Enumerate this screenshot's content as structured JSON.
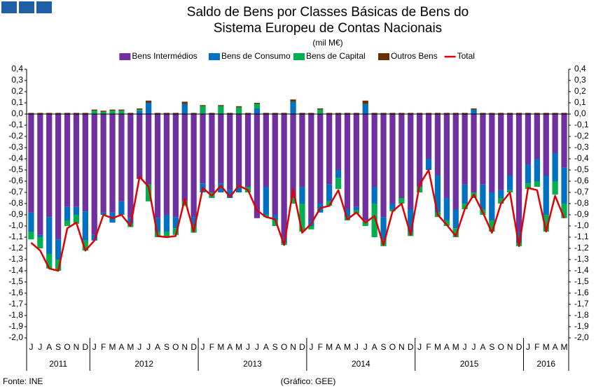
{
  "chart_data": {
    "type": "stacked_bar_line",
    "title": [
      "Saldo de Bens por Classes Básicas de Bens do",
      "Sistema Europeu de Contas Nacionais"
    ],
    "subtitle": "(mil M€)",
    "category_groups": [
      {
        "label": "2011",
        "categories": [
          "J",
          "J",
          "A",
          "S",
          "O",
          "N",
          "D"
        ]
      },
      {
        "label": "2012",
        "categories": [
          "J",
          "F",
          "M",
          "A",
          "M",
          "J",
          "J",
          "A",
          "S",
          "O",
          "N",
          "D"
        ]
      },
      {
        "label": "2013",
        "categories": [
          "J",
          "F",
          "M",
          "A",
          "M",
          "J",
          "J",
          "A",
          "S",
          "O",
          "N",
          "D"
        ]
      },
      {
        "label": "2014",
        "categories": [
          "J",
          "F",
          "M",
          "A",
          "M",
          "J",
          "J",
          "A",
          "S",
          "O",
          "N",
          "D"
        ]
      },
      {
        "label": "2015",
        "categories": [
          "J",
          "F",
          "M",
          "A",
          "M",
          "J",
          "J",
          "A",
          "S",
          "O",
          "N",
          "D"
        ]
      },
      {
        "label": "2016",
        "categories": [
          "J",
          "F",
          "M",
          "A",
          "M"
        ]
      }
    ],
    "series": [
      {
        "name": "Bens Intermédios",
        "color": "#7030a0",
        "values": [
          -0.88,
          -1.08,
          -0.92,
          -1.12,
          -0.83,
          -0.83,
          -0.87,
          -1.08,
          -0.88,
          -0.88,
          -0.78,
          -0.93,
          -0.58,
          -0.63,
          -0.93,
          -0.9,
          -0.92,
          -0.78,
          -0.92,
          -0.62,
          -0.7,
          -0.62,
          -0.68,
          -0.65,
          -0.65,
          -0.93,
          -0.65,
          -0.9,
          -1.1,
          -0.75,
          -0.65,
          -0.95,
          -0.8,
          -0.63,
          -0.5,
          -0.85,
          -0.83,
          -0.95,
          -0.65,
          -0.92,
          -0.8,
          -0.75,
          -0.85,
          -0.65,
          -0.4,
          -0.55,
          -0.75,
          -0.85,
          -0.63,
          -0.7,
          -0.63,
          -0.7,
          -0.68,
          -0.55,
          -1.05,
          -0.45,
          -0.4,
          -0.55,
          -0.35,
          -0.48
        ]
      },
      {
        "name": "Bens de Consumo",
        "color": "#0070c0",
        "values": [
          -0.17,
          -0.02,
          -0.33,
          -0.18,
          -0.12,
          -0.07,
          -0.26,
          -0.05,
          -0.02,
          -0.09,
          -0.12,
          -0.05,
          0.03,
          0.1,
          -0.12,
          -0.15,
          -0.1,
          0.09,
          -0.08,
          -0.08,
          0,
          -0.08,
          -0.07,
          -0.05,
          0,
          0.05,
          -0.25,
          -0.05,
          -0.05,
          0.11,
          -0.15,
          -0.05,
          -0.08,
          -0.15,
          -0.07,
          -0.07,
          -0.03,
          0.09,
          -0.15,
          -0.21,
          -0.05,
          0,
          -0.2,
          0,
          -0.1,
          -0.33,
          -0.2,
          -0.17,
          -0.17,
          0.04,
          -0.22,
          -0.25,
          -0.07,
          -0.13,
          -0.1,
          -0.17,
          -0.2,
          -0.35,
          -0.25,
          -0.32
        ]
      },
      {
        "name": "Bens de Capital",
        "color": "#00b050",
        "values": [
          -0.07,
          -0.1,
          -0.13,
          -0.1,
          -0.05,
          -0.08,
          -0.09,
          0.03,
          0.02,
          0.03,
          0.03,
          -0.03,
          0.01,
          -0.15,
          -0.05,
          -0.05,
          -0.06,
          -0.04,
          -0.06,
          0.07,
          -0.05,
          0.07,
          0,
          0.06,
          -0.05,
          0.04,
          -0.02,
          -0.05,
          -0.02,
          -0.05,
          -0.25,
          -0.03,
          0.04,
          -0.04,
          -0.1,
          -0.03,
          -0.03,
          -0.05,
          -0.3,
          -0.05,
          -0.02,
          -0.05,
          -0.04,
          -0.05,
          0,
          -0.04,
          -0.05,
          -0.08,
          -0.05,
          -0.05,
          -0.05,
          -0.1,
          -0.05,
          -0.02,
          -0.03,
          -0.05,
          -0.05,
          -0.15,
          -0.12,
          -0.13
        ]
      },
      {
        "name": "Outros Bens",
        "color": "#663300",
        "values": [
          0.01,
          0.01,
          0.01,
          0.01,
          0.01,
          0.01,
          0.01,
          0.01,
          0.01,
          0.01,
          0.01,
          0.01,
          0.01,
          0.02,
          0.01,
          0.01,
          0.01,
          0.02,
          0.01,
          0.01,
          0.01,
          0.01,
          0.01,
          0.01,
          0.01,
          0.01,
          0.01,
          0.01,
          0.01,
          0.02,
          0.01,
          0.01,
          0.01,
          0.01,
          0.01,
          0.01,
          0.01,
          0.03,
          0.01,
          0.01,
          0.01,
          0.01,
          0.01,
          0.01,
          0.01,
          0.01,
          0.01,
          0.01,
          0.01,
          0.01,
          0.01,
          0.01,
          0.01,
          0.01,
          0.01,
          0.01,
          0.01,
          0.01,
          0.01,
          0.01
        ]
      },
      {
        "name": "Total",
        "color": "#e00000",
        "line": true,
        "values": [
          -1.15,
          -1.22,
          -1.38,
          -1.4,
          -1.02,
          -0.97,
          -1.22,
          -1.13,
          -0.9,
          -0.93,
          -0.9,
          -1.0,
          -0.56,
          -0.65,
          -1.09,
          -1.1,
          -1.09,
          -0.76,
          -1.05,
          -0.66,
          -0.73,
          -0.64,
          -0.74,
          -0.64,
          -0.68,
          -0.86,
          -0.92,
          -0.94,
          -1.17,
          -0.67,
          -1.06,
          -0.98,
          -0.84,
          -0.82,
          -0.68,
          -0.94,
          -0.88,
          -0.97,
          -0.91,
          -1.17,
          -0.87,
          -0.8,
          -1.08,
          -0.63,
          -0.5,
          -0.9,
          -0.99,
          -1.09,
          -0.85,
          -0.72,
          -0.88,
          -1.06,
          -0.8,
          -0.7,
          -1.18,
          -0.66,
          -0.68,
          -1.05,
          -0.73,
          -0.93
        ]
      }
    ],
    "ylim": [
      -2.0,
      0.4
    ],
    "yticks": [
      {
        "value": 0.4,
        "label": "0,4"
      },
      {
        "value": 0.3,
        "label": "0,3"
      },
      {
        "value": 0.2,
        "label": "0,2"
      },
      {
        "value": 0.1,
        "label": "0,1"
      },
      {
        "value": 0,
        "label": "0,0"
      },
      {
        "value": -0.1,
        "label": "-0,1"
      },
      {
        "value": -0.2,
        "label": "-0,2"
      },
      {
        "value": -0.3,
        "label": "-0,3"
      },
      {
        "value": -0.4,
        "label": "-0,4"
      },
      {
        "value": -0.5,
        "label": "-0,5"
      },
      {
        "value": -0.6,
        "label": "-0,6"
      },
      {
        "value": -0.7,
        "label": "-0,7"
      },
      {
        "value": -0.8,
        "label": "-0,8"
      },
      {
        "value": -0.9,
        "label": "-0,9"
      },
      {
        "value": -1.0,
        "label": "-1,0"
      },
      {
        "value": -1.1,
        "label": "-1,1"
      },
      {
        "value": -1.2,
        "label": "-1,2"
      },
      {
        "value": -1.3,
        "label": "-1,3"
      },
      {
        "value": -1.4,
        "label": "-1,4"
      },
      {
        "value": -1.5,
        "label": "-1,5"
      },
      {
        "value": -1.6,
        "label": "-1,6"
      },
      {
        "value": -1.7,
        "label": "-1,7"
      },
      {
        "value": -1.8,
        "label": "-1,8"
      },
      {
        "value": -1.9,
        "label": "-1,9"
      },
      {
        "value": -2.0,
        "label": "-2,0"
      }
    ],
    "right_axis": true,
    "grid": false,
    "legend": "top",
    "source": "Fonte: INE",
    "credit": "(Gráfico: GEE)"
  }
}
